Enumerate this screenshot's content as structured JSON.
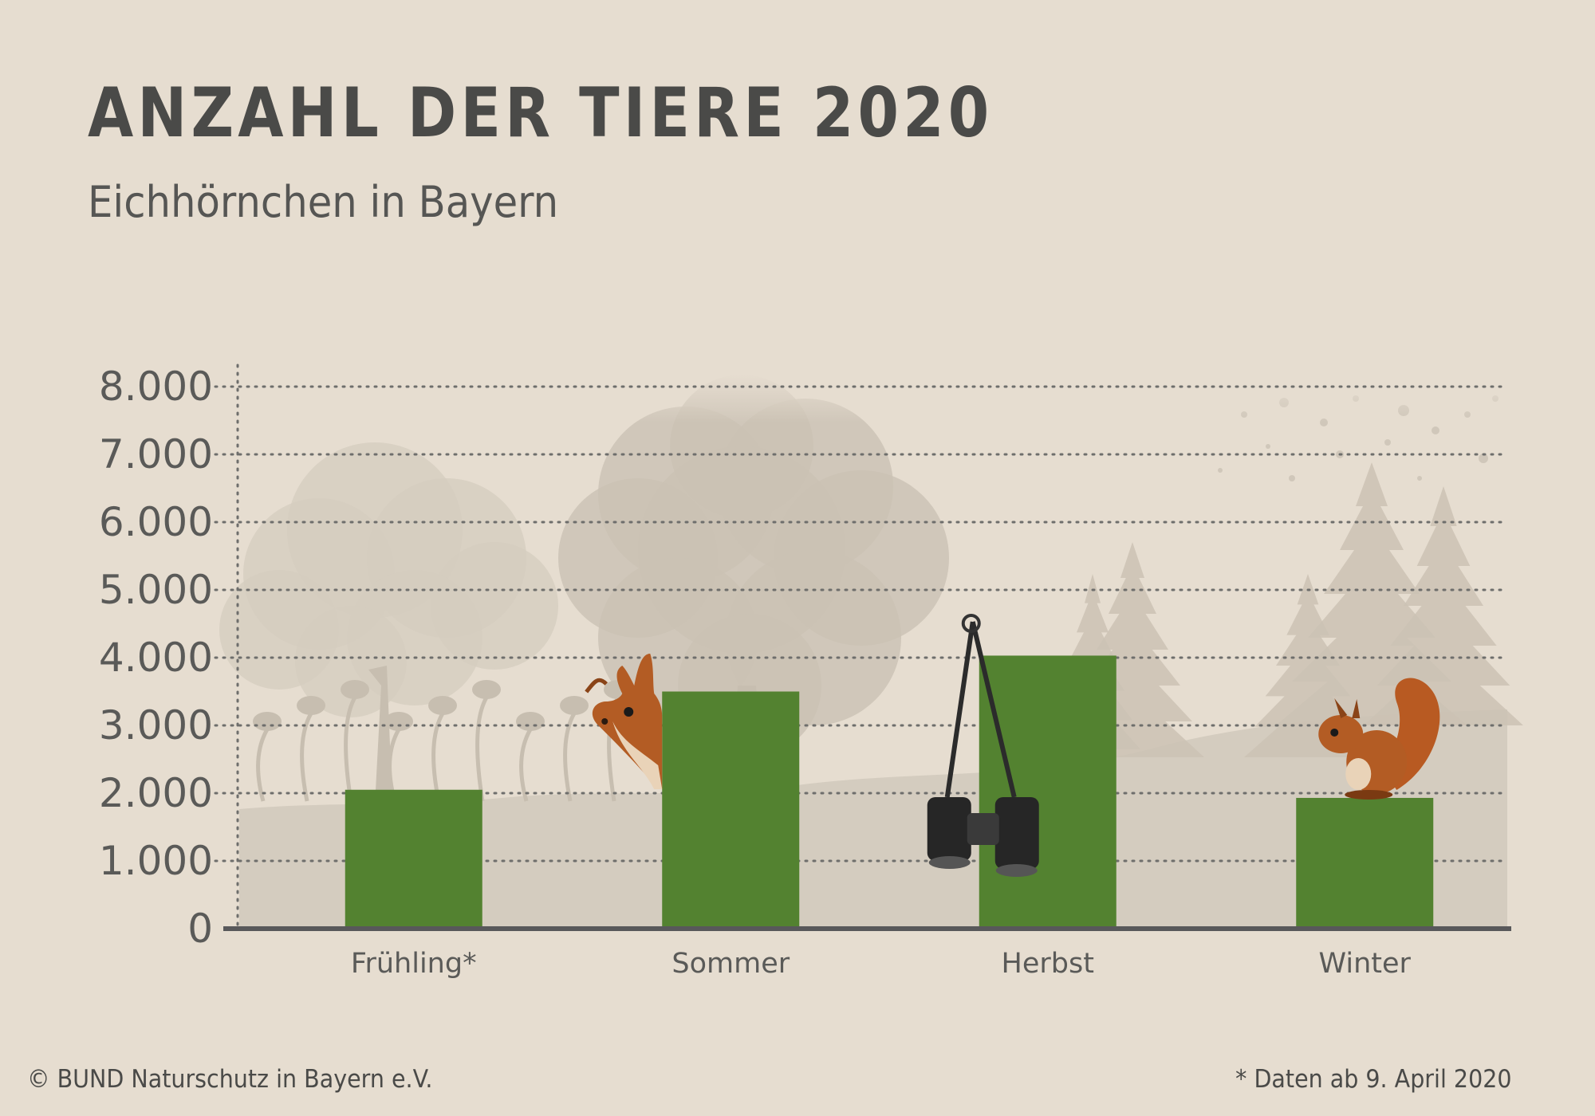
{
  "title": "ANZAHL DER TIERE 2020",
  "subtitle": "Eichhörnchen in Bayern",
  "footer": {
    "copyright": "© BUND Naturschutz in Bayern e.V.",
    "note": "* Daten ab 9. April 2020"
  },
  "colors": {
    "background": "#e6ddd0",
    "bar": "#538230",
    "text": "#4a4a48",
    "grid": "#6e6e6c"
  },
  "chart_data": {
    "type": "bar",
    "title": "ANZAHL DER TIERE 2020",
    "subtitle": "Eichhörnchen in Bayern",
    "categories": [
      "Frühling*",
      "Sommer",
      "Herbst",
      "Winter"
    ],
    "values": [
      2050,
      3500,
      4030,
      1930
    ],
    "ylim": [
      0,
      8000
    ],
    "yticks": [
      0,
      1000,
      2000,
      3000,
      4000,
      5000,
      6000,
      7000,
      8000
    ],
    "ytick_labels": [
      "0",
      "1.000",
      "2.000",
      "3.000",
      "4.000",
      "5.000",
      "6.000",
      "7.000",
      "8.000"
    ],
    "grid": true,
    "grid_style": "dotted",
    "legend": "none",
    "decorations": [
      "forest-silhouette",
      "peeking-squirrel",
      "hanging-binoculars",
      "sitting-squirrel"
    ]
  }
}
